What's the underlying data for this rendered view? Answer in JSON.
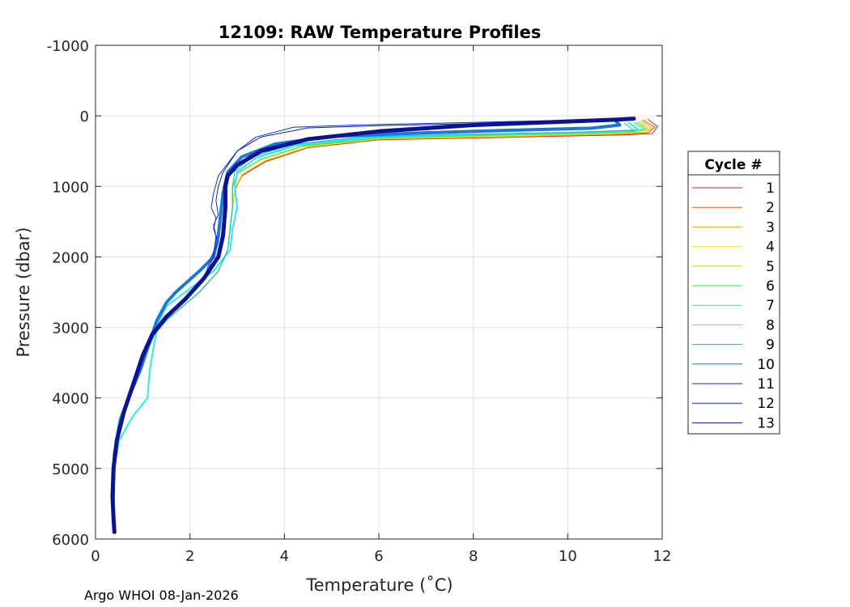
{
  "chart_data": {
    "type": "line",
    "title": "12109: RAW Temperature Profiles",
    "xlabel": "Temperature (˚C)",
    "ylabel": "Pressure (dbar)",
    "xlim": [
      0,
      12
    ],
    "ylim": [
      -1000,
      6000
    ],
    "y_reversed": true,
    "grid": true,
    "xticks": [
      0,
      2,
      4,
      6,
      8,
      10,
      12
    ],
    "yticks": [
      -1000,
      0,
      1000,
      2000,
      3000,
      4000,
      5000,
      6000
    ],
    "legend": {
      "title": "Cycle #",
      "placement": "outside-right"
    },
    "footer": "Argo WHOI 08-Jan-2026",
    "series": [
      {
        "name": "1",
        "color": "#d42a1a",
        "width": 1,
        "temperature": [
          11.7,
          11.9,
          11.8,
          11.2,
          9.0,
          6.0,
          4.5,
          3.6,
          3.1,
          2.95,
          2.9,
          2.85,
          2.8,
          2.6,
          2.2,
          1.85,
          1.5,
          1.25,
          1.05,
          0.8,
          0.5,
          0.38,
          0.36,
          0.37
        ],
        "pressure": [
          50,
          150,
          250,
          270,
          300,
          340,
          450,
          650,
          850,
          1050,
          1300,
          1600,
          1900,
          2200,
          2500,
          2700,
          2900,
          3100,
          3400,
          3800,
          4300,
          4800,
          5200,
          5600
        ]
      },
      {
        "name": "2",
        "color": "#e05a0a",
        "width": 1,
        "temperature": [
          11.6,
          11.85,
          11.7,
          11.0,
          9.0,
          6.0,
          4.5,
          3.6,
          3.1,
          2.95,
          2.9,
          2.85,
          2.8,
          2.6,
          2.2,
          1.85,
          1.5,
          1.25,
          1.05,
          0.8,
          0.5,
          0.38,
          0.36,
          0.37
        ],
        "pressure": [
          60,
          160,
          240,
          265,
          295,
          335,
          445,
          640,
          840,
          1040,
          1300,
          1600,
          1900,
          2200,
          2500,
          2700,
          2900,
          3100,
          3400,
          3800,
          4300,
          4800,
          5200,
          5600
        ]
      },
      {
        "name": "3",
        "color": "#f0a020",
        "width": 1,
        "temperature": [
          11.55,
          11.8,
          11.65,
          10.9,
          9.0,
          6.0,
          4.5,
          3.6,
          3.1,
          2.95,
          2.9,
          2.85,
          2.8,
          2.6,
          2.2,
          1.85,
          1.5,
          1.25,
          1.05,
          0.8,
          0.5,
          0.38,
          0.36,
          0.37
        ],
        "pressure": [
          70,
          170,
          235,
          260,
          290,
          330,
          440,
          635,
          835,
          1035,
          1300,
          1600,
          1900,
          2200,
          2500,
          2700,
          2900,
          3100,
          3400,
          3800,
          4300,
          4800,
          5200,
          5600
        ]
      },
      {
        "name": "4",
        "color": "#f2e61a",
        "width": 1,
        "temperature": [
          11.5,
          11.75,
          11.6,
          10.8,
          8.8,
          6.0,
          4.5,
          3.6,
          3.1,
          2.95,
          2.9,
          2.85,
          2.8,
          2.6,
          2.2,
          1.85,
          1.5,
          1.25,
          1.05,
          0.8,
          0.5,
          0.38,
          0.36,
          0.37
        ],
        "pressure": [
          80,
          180,
          230,
          255,
          285,
          325,
          435,
          630,
          830,
          1030,
          1300,
          1600,
          1900,
          2200,
          2500,
          2700,
          2900,
          3100,
          3400,
          3800,
          4300,
          4800,
          5200,
          5600
        ]
      },
      {
        "name": "5",
        "color": "#a8e622",
        "width": 1,
        "temperature": [
          11.5,
          11.7,
          11.5,
          10.6,
          8.5,
          6.0,
          4.4,
          3.5,
          3.0,
          2.9,
          2.9,
          2.85,
          2.8,
          2.6,
          2.2,
          1.85,
          1.5,
          1.25,
          1.05,
          0.8,
          0.5,
          0.38,
          0.36,
          0.37
        ],
        "pressure": [
          85,
          185,
          225,
          250,
          280,
          320,
          430,
          620,
          820,
          1020,
          1300,
          1600,
          1900,
          2200,
          2500,
          2700,
          2900,
          3100,
          3400,
          3800,
          4300,
          4800,
          5200,
          5600
        ]
      },
      {
        "name": "6",
        "color": "#3ddc3a",
        "width": 1,
        "temperature": [
          11.45,
          11.65,
          11.4,
          10.5,
          8.3,
          6.0,
          4.4,
          3.5,
          3.0,
          2.9,
          2.9,
          2.85,
          2.8,
          2.6,
          2.2,
          1.85,
          1.5,
          1.25,
          1.05,
          0.8,
          0.5,
          0.38,
          0.36,
          0.37
        ],
        "pressure": [
          90,
          190,
          220,
          245,
          275,
          315,
          425,
          615,
          815,
          1015,
          1300,
          1600,
          1900,
          2200,
          2500,
          2700,
          2900,
          3100,
          3400,
          3800,
          4300,
          4800,
          5200,
          5600
        ]
      },
      {
        "name": "7",
        "color": "#38e0a0",
        "width": 1,
        "temperature": [
          11.4,
          11.6,
          11.3,
          10.3,
          8.0,
          6.0,
          4.3,
          3.4,
          3.0,
          2.95,
          3.0,
          2.9,
          2.85,
          2.5,
          1.9,
          1.5,
          1.35,
          1.25,
          1.15,
          1.1,
          0.8,
          0.5,
          0.4,
          0.38,
          0.37
        ],
        "pressure": [
          95,
          195,
          215,
          240,
          270,
          310,
          420,
          600,
          800,
          1000,
          1300,
          1600,
          1900,
          2200,
          2500,
          2700,
          2900,
          3200,
          3600,
          4000,
          4250,
          4600,
          5000,
          5300,
          5600
        ]
      },
      {
        "name": "8",
        "color": "#2ee8f0",
        "width": 2,
        "temperature": [
          11.3,
          11.5,
          11.2,
          10.2,
          7.8,
          5.8,
          4.2,
          3.4,
          3.0,
          2.95,
          3.0,
          2.9,
          2.85,
          2.5,
          1.9,
          1.5,
          1.35,
          1.25,
          1.15,
          1.1,
          0.8,
          0.5,
          0.4,
          0.38,
          0.37
        ],
        "pressure": [
          100,
          200,
          212,
          238,
          268,
          305,
          415,
          595,
          795,
          995,
          1300,
          1600,
          1900,
          2200,
          2500,
          2700,
          2900,
          3200,
          3600,
          4000,
          4250,
          4600,
          5000,
          5300,
          5600
        ]
      },
      {
        "name": "9",
        "color": "#18b4c8",
        "width": 1,
        "temperature": [
          11.2,
          11.4,
          11.1,
          10.0,
          7.5,
          5.6,
          4.1,
          3.3,
          2.95,
          2.9,
          2.9,
          2.85,
          2.8,
          2.6,
          2.2,
          1.85,
          1.5,
          1.25,
          1.05,
          0.8,
          0.5,
          0.38,
          0.36,
          0.37
        ],
        "pressure": [
          105,
          205,
          210,
          235,
          265,
          300,
          410,
          590,
          790,
          990,
          1300,
          1600,
          1900,
          2200,
          2500,
          2700,
          2900,
          3100,
          3400,
          3800,
          4300,
          4800,
          5200,
          5600
        ]
      },
      {
        "name": "10",
        "color": "#1a78d8",
        "width": 4,
        "temperature": [
          11.0,
          11.1,
          10.5,
          9.0,
          7.0,
          5.0,
          3.8,
          3.1,
          2.8,
          2.7,
          2.65,
          2.6,
          2.5,
          2.2,
          1.7,
          1.5,
          1.3,
          1.15,
          0.95,
          0.7,
          0.5,
          0.4,
          0.38,
          0.37
        ],
        "pressure": [
          60,
          130,
          175,
          200,
          240,
          290,
          400,
          580,
          800,
          1100,
          1400,
          1700,
          2000,
          2200,
          2500,
          2650,
          2900,
          3200,
          3600,
          4000,
          4400,
          4800,
          5200,
          5600
        ]
      },
      {
        "name": "11",
        "color": "#1428a0",
        "width": 1,
        "temperature": [
          11.3,
          10.0,
          8.0,
          6.0,
          4.5,
          3.5,
          3.0,
          2.7,
          2.6,
          2.55,
          2.6,
          2.5,
          2.55,
          2.5,
          2.3,
          1.9,
          1.5,
          1.2,
          1.0,
          0.8,
          0.6,
          0.45,
          0.38,
          0.36
        ],
        "pressure": [
          50,
          80,
          110,
          140,
          170,
          300,
          500,
          800,
          1000,
          1200,
          1400,
          1550,
          1700,
          2000,
          2300,
          2600,
          2850,
          3100,
          3400,
          3800,
          4200,
          4600,
          5000,
          5400
        ]
      },
      {
        "name": "12",
        "color": "#1030e0",
        "width": 1,
        "temperature": [
          11.3,
          9.5,
          7.5,
          5.5,
          4.2,
          3.4,
          3.0,
          2.6,
          2.5,
          2.45,
          2.55,
          2.5,
          2.6,
          2.45,
          2.3,
          1.9,
          1.5,
          1.2,
          1.0,
          0.8,
          0.6,
          0.45,
          0.38,
          0.36
        ],
        "pressure": [
          45,
          70,
          100,
          130,
          160,
          300,
          500,
          850,
          1100,
          1300,
          1450,
          1600,
          1800,
          2000,
          2300,
          2600,
          2850,
          3100,
          3400,
          3800,
          4200,
          4600,
          5000,
          5400
        ]
      },
      {
        "name": "13",
        "color": "#0a1490",
        "width": 5,
        "temperature": [
          11.4,
          11.0,
          10.0,
          8.0,
          6.0,
          4.5,
          3.5,
          3.0,
          2.8,
          2.75,
          2.75,
          2.7,
          2.6,
          2.3,
          1.9,
          1.5,
          1.2,
          1.0,
          0.8,
          0.6,
          0.45,
          0.38,
          0.36,
          0.38,
          0.4
        ],
        "pressure": [
          40,
          55,
          80,
          130,
          220,
          330,
          500,
          700,
          850,
          1000,
          1300,
          1700,
          2000,
          2300,
          2600,
          2850,
          3100,
          3400,
          3800,
          4200,
          4600,
          5000,
          5400,
          5700,
          5900
        ]
      }
    ]
  }
}
